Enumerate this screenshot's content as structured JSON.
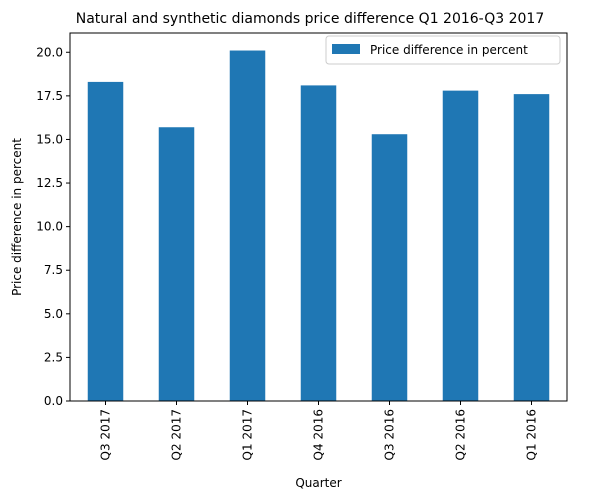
{
  "chart_data": {
    "type": "bar",
    "title": "Natural and synthetic diamonds price difference Q1 2016-Q3 2017",
    "xlabel": "Quarter",
    "ylabel": "Price difference in percent",
    "categories": [
      "Q3 2017",
      "Q2 2017",
      "Q1 2017",
      "Q4 2016",
      "Q3 2016",
      "Q2 2016",
      "Q1 2016"
    ],
    "series": [
      {
        "name": "Price difference in percent",
        "values": [
          18.3,
          15.7,
          20.1,
          18.1,
          15.3,
          17.8,
          17.6
        ],
        "color": "#1f77b4"
      }
    ],
    "ylim": [
      0,
      21.105
    ],
    "yticks": [
      "0.0",
      "2.5",
      "5.0",
      "7.5",
      "10.0",
      "12.5",
      "15.0",
      "17.5",
      "20.0"
    ],
    "grid": false,
    "legend": "top-right"
  }
}
